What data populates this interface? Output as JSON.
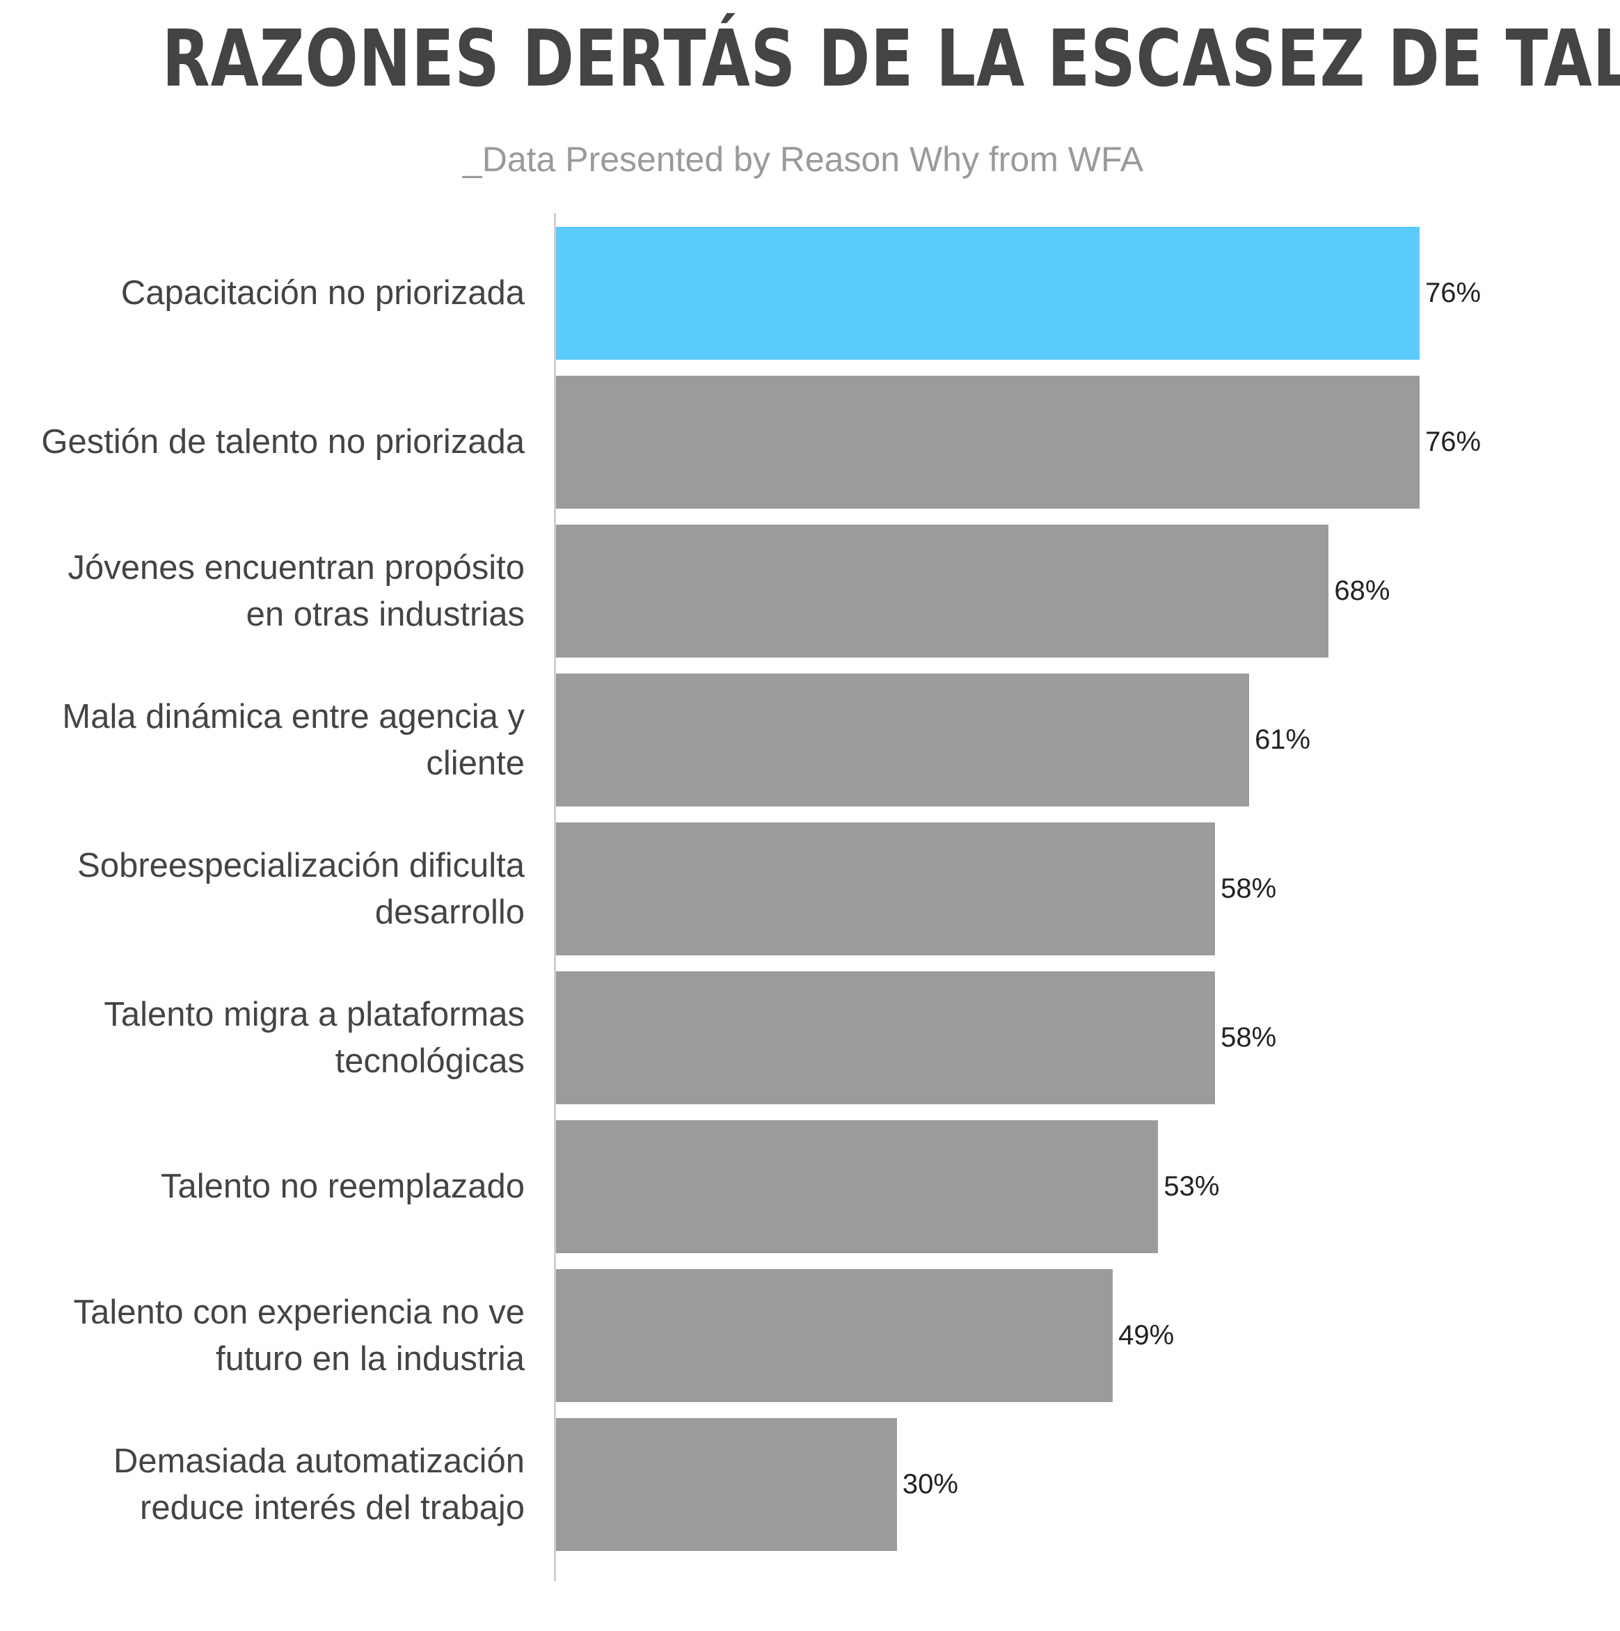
{
  "chart_data": {
    "type": "bar",
    "orientation": "horizontal",
    "title": "RAZONES DERTÁS DE LA ESCASEZ DE TALENTO",
    "subtitle": "_Data Presented by Reason Why from WFA",
    "categories": [
      "Capacitación no priorizada",
      "Gestión de talento no priorizada",
      "Jóvenes encuentran propósito en otras industrias",
      "Mala dinámica entre agencia y cliente",
      "Sobreespecialización dificulta desarrollo",
      "Talento migra a plataformas tecnológicas",
      "Talento no reemplazado",
      "Talento con experiencia no ve futuro en la industria",
      "Demasiada automatización reduce interés del trabajo"
    ],
    "values": [
      76,
      76,
      68,
      61,
      58,
      58,
      53,
      49,
      30
    ],
    "value_labels": [
      "76%",
      "76%",
      "68%",
      "61%",
      "58%",
      "58%",
      "53%",
      "49%",
      "30%"
    ],
    "colors": [
      "#5bcbfc",
      "#9b9b9b",
      "#9b9b9b",
      "#9b9b9b",
      "#9b9b9b",
      "#9b9b9b",
      "#9b9b9b",
      "#9b9b9b",
      "#9b9b9b"
    ]
  }
}
